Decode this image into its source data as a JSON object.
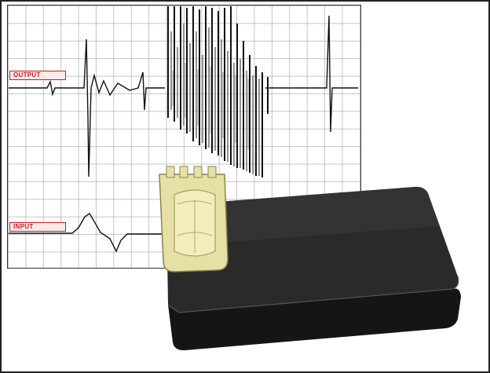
{
  "scope": {
    "output_label": "OUTPUT",
    "input_label": "INPUT"
  },
  "colors": {
    "label_red": "#cc1a1a",
    "label_bg": "#ffe9e9",
    "module_body": "#1f1f1f",
    "connector": "#e4dca0"
  }
}
